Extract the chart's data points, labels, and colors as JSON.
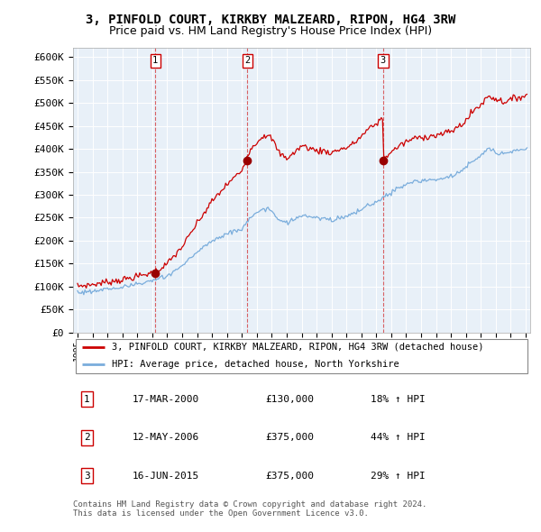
{
  "title": "3, PINFOLD COURT, KIRKBY MALZEARD, RIPON, HG4 3RW",
  "subtitle": "Price paid vs. HM Land Registry's House Price Index (HPI)",
  "ylim": [
    0,
    620000
  ],
  "yticks": [
    0,
    50000,
    100000,
    150000,
    200000,
    250000,
    300000,
    350000,
    400000,
    450000,
    500000,
    550000,
    600000
  ],
  "ytick_labels": [
    "£0",
    "£50K",
    "£100K",
    "£150K",
    "£200K",
    "£250K",
    "£300K",
    "£350K",
    "£400K",
    "£450K",
    "£500K",
    "£550K",
    "£600K"
  ],
  "house_color": "#cc0000",
  "hpi_color": "#7aaddc",
  "chart_bg_color": "#e8f0f8",
  "grid_color": "#ffffff",
  "sale_dates": [
    2000.21,
    2006.37,
    2015.45
  ],
  "sale_prices": [
    130000,
    375000,
    375000
  ],
  "sale_labels": [
    "1",
    "2",
    "3"
  ],
  "legend_house": "3, PINFOLD COURT, KIRKBY MALZEARD, RIPON, HG4 3RW (detached house)",
  "legend_hpi": "HPI: Average price, detached house, North Yorkshire",
  "table_rows": [
    [
      "1",
      "17-MAR-2000",
      "£130,000",
      "18% ↑ HPI"
    ],
    [
      "2",
      "12-MAY-2006",
      "£375,000",
      "44% ↑ HPI"
    ],
    [
      "3",
      "16-JUN-2015",
      "£375,000",
      "29% ↑ HPI"
    ]
  ],
  "footer": "Contains HM Land Registry data © Crown copyright and database right 2024.\nThis data is licensed under the Open Government Licence v3.0.",
  "title_fontsize": 10,
  "subtitle_fontsize": 9,
  "tick_fontsize": 8
}
